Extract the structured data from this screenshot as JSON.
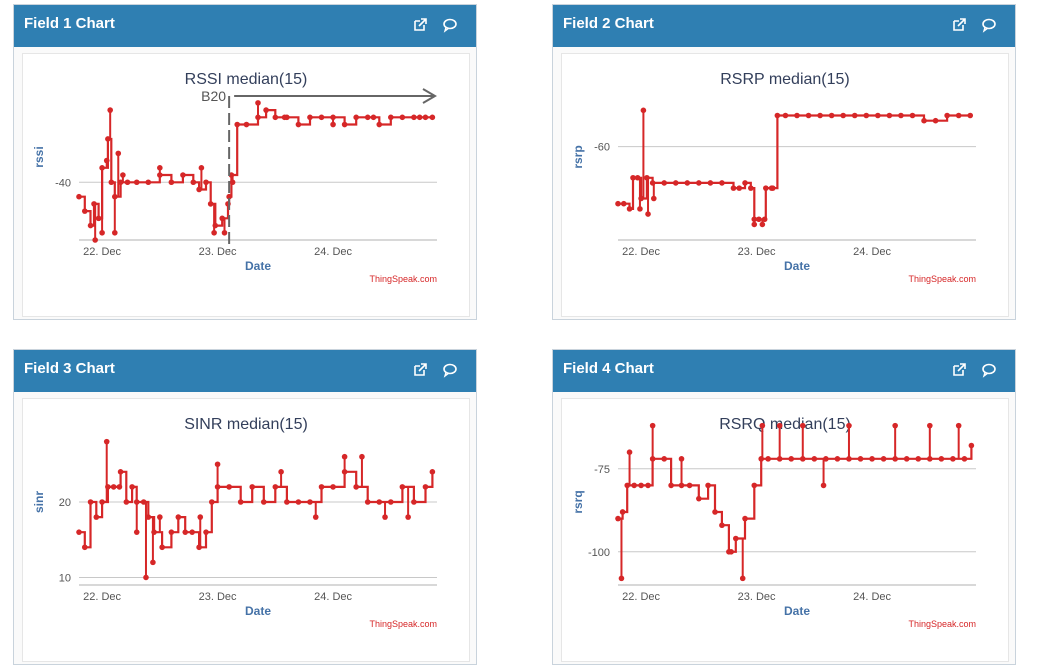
{
  "panels": [
    {
      "header": "Field 1 Chart",
      "open_icon": "external-link-icon",
      "comment_icon": "comment-icon",
      "chart_data": {
        "type": "line",
        "title": "RSSI median(15)",
        "xlabel": "Date",
        "ylabel": "rssi",
        "xlim": [
          0,
          3.1
        ],
        "ylim": [
          -48,
          -25
        ],
        "xticks": [
          {
            "value": 0.2,
            "label": "22. Dec"
          },
          {
            "value": 1.2,
            "label": "23. Dec"
          },
          {
            "value": 2.2,
            "label": "24. Dec"
          }
        ],
        "yticks": [
          {
            "value": -40,
            "label": "-40"
          }
        ],
        "color": "#d62728",
        "credit": "ThingSpeak.com",
        "annotation": {
          "text": "B20",
          "x": 1.3,
          "y_top": -25,
          "y_bottom": -48
        },
        "segments": [
          [
            0,
            -42
          ],
          [
            0.05,
            -44
          ],
          [
            0.1,
            -46
          ],
          [
            0.13,
            -43
          ],
          [
            0.17,
            -45
          ],
          [
            0.2,
            -38
          ],
          [
            0.25,
            -34
          ],
          [
            0.28,
            -40
          ],
          [
            0.31,
            -42
          ],
          [
            0.36,
            -40
          ],
          [
            0.42,
            -40
          ],
          [
            0.5,
            -40
          ],
          [
            0.6,
            -40
          ],
          [
            0.7,
            -39
          ],
          [
            0.8,
            -40
          ],
          [
            0.9,
            -39
          ],
          [
            0.99,
            -40
          ],
          [
            1.04,
            -41
          ],
          [
            1.1,
            -40
          ],
          [
            1.14,
            -43
          ],
          [
            1.18,
            -46
          ],
          [
            1.24,
            -45
          ],
          [
            1.29,
            -43
          ],
          [
            1.3,
            -42
          ],
          [
            1.32,
            -39
          ],
          [
            1.37,
            -32
          ],
          [
            1.45,
            -32
          ],
          [
            1.55,
            -31
          ],
          [
            1.62,
            -30
          ],
          [
            1.7,
            -31
          ],
          [
            1.8,
            -31
          ],
          [
            1.9,
            -32
          ],
          [
            2.0,
            -31
          ],
          [
            2.1,
            -31
          ],
          [
            2.2,
            -31
          ],
          [
            2.3,
            -32
          ],
          [
            2.4,
            -31
          ],
          [
            2.5,
            -31
          ],
          [
            2.6,
            -32
          ],
          [
            2.7,
            -31
          ],
          [
            2.8,
            -31
          ],
          [
            2.9,
            -31
          ],
          [
            3.0,
            -31
          ],
          [
            3.06,
            -31
          ]
        ],
        "spikes": [
          [
            0.14,
            -48
          ],
          [
            0.2,
            -47
          ],
          [
            0.24,
            -37
          ],
          [
            0.27,
            -30
          ],
          [
            0.31,
            -47
          ],
          [
            0.34,
            -36
          ],
          [
            0.38,
            -39
          ],
          [
            0.7,
            -38
          ],
          [
            1.06,
            -38
          ],
          [
            1.17,
            -47
          ],
          [
            1.26,
            -47
          ],
          [
            1.33,
            -40
          ],
          [
            1.55,
            -29
          ],
          [
            1.78,
            -31
          ],
          [
            2.2,
            -32
          ],
          [
            2.55,
            -31
          ],
          [
            2.95,
            -31
          ]
        ]
      }
    },
    {
      "header": "Field 2 Chart",
      "open_icon": "external-link-icon",
      "comment_icon": "comment-icon",
      "chart_data": {
        "type": "line",
        "title": "RSRP median(15)",
        "xlabel": "Date",
        "ylabel": "rsrp",
        "xlim": [
          0,
          3.1
        ],
        "ylim": [
          -78,
          -46
        ],
        "xticks": [
          {
            "value": 0.2,
            "label": "22. Dec"
          },
          {
            "value": 1.2,
            "label": "23. Dec"
          },
          {
            "value": 2.2,
            "label": "24. Dec"
          }
        ],
        "yticks": [
          {
            "value": -60,
            "label": "-60"
          }
        ],
        "color": "#d62728",
        "credit": "ThingSpeak.com",
        "segments": [
          [
            0,
            -71
          ],
          [
            0.05,
            -71
          ],
          [
            0.1,
            -72
          ],
          [
            0.13,
            -66
          ],
          [
            0.17,
            -66
          ],
          [
            0.2,
            -70
          ],
          [
            0.25,
            -66
          ],
          [
            0.3,
            -67
          ],
          [
            0.4,
            -67
          ],
          [
            0.5,
            -67
          ],
          [
            0.6,
            -67
          ],
          [
            0.7,
            -67
          ],
          [
            0.8,
            -67
          ],
          [
            0.9,
            -67
          ],
          [
            1.0,
            -68
          ],
          [
            1.05,
            -68
          ],
          [
            1.1,
            -67
          ],
          [
            1.15,
            -68
          ],
          [
            1.18,
            -74
          ],
          [
            1.22,
            -74
          ],
          [
            1.27,
            -74
          ],
          [
            1.28,
            -68
          ],
          [
            1.33,
            -68
          ],
          [
            1.38,
            -54
          ],
          [
            1.45,
            -54
          ],
          [
            1.55,
            -54
          ],
          [
            1.65,
            -54
          ],
          [
            1.75,
            -54
          ],
          [
            1.85,
            -54
          ],
          [
            1.95,
            -54
          ],
          [
            2.05,
            -54
          ],
          [
            2.15,
            -54
          ],
          [
            2.25,
            -54
          ],
          [
            2.35,
            -54
          ],
          [
            2.45,
            -54
          ],
          [
            2.55,
            -54
          ],
          [
            2.65,
            -55
          ],
          [
            2.75,
            -55
          ],
          [
            2.85,
            -54
          ],
          [
            2.95,
            -54
          ],
          [
            3.05,
            -54
          ]
        ],
        "spikes": [
          [
            0.19,
            -72
          ],
          [
            0.22,
            -53
          ],
          [
            0.26,
            -73
          ],
          [
            0.31,
            -70
          ],
          [
            1.18,
            -75
          ],
          [
            1.25,
            -75
          ],
          [
            1.34,
            -68
          ]
        ]
      }
    },
    {
      "header": "Field 3 Chart",
      "open_icon": "external-link-icon",
      "comment_icon": "comment-icon",
      "chart_data": {
        "type": "line",
        "title": "SINR median(15)",
        "xlabel": "Date",
        "ylabel": "sinr",
        "xlim": [
          0,
          3.1
        ],
        "ylim": [
          9,
          31
        ],
        "xticks": [
          {
            "value": 0.2,
            "label": "22. Dec"
          },
          {
            "value": 1.2,
            "label": "23. Dec"
          },
          {
            "value": 2.2,
            "label": "24. Dec"
          }
        ],
        "yticks": [
          {
            "value": 10,
            "label": "10"
          },
          {
            "value": 20,
            "label": "20"
          }
        ],
        "color": "#d62728",
        "credit": "ThingSpeak.com",
        "segments": [
          [
            0,
            16
          ],
          [
            0.05,
            14
          ],
          [
            0.1,
            20
          ],
          [
            0.15,
            18
          ],
          [
            0.2,
            20
          ],
          [
            0.25,
            22
          ],
          [
            0.3,
            22
          ],
          [
            0.36,
            24
          ],
          [
            0.41,
            20
          ],
          [
            0.46,
            22
          ],
          [
            0.5,
            20
          ],
          [
            0.56,
            20
          ],
          [
            0.6,
            18
          ],
          [
            0.65,
            16
          ],
          [
            0.72,
            14
          ],
          [
            0.8,
            16
          ],
          [
            0.86,
            18
          ],
          [
            0.92,
            16
          ],
          [
            0.98,
            16
          ],
          [
            1.04,
            14
          ],
          [
            1.1,
            16
          ],
          [
            1.15,
            20
          ],
          [
            1.2,
            22
          ],
          [
            1.3,
            22
          ],
          [
            1.4,
            20
          ],
          [
            1.5,
            22
          ],
          [
            1.6,
            20
          ],
          [
            1.7,
            22
          ],
          [
            1.8,
            20
          ],
          [
            1.9,
            20
          ],
          [
            2.0,
            20
          ],
          [
            2.1,
            22
          ],
          [
            2.2,
            22
          ],
          [
            2.3,
            24
          ],
          [
            2.4,
            22
          ],
          [
            2.5,
            20
          ],
          [
            2.6,
            20
          ],
          [
            2.7,
            20
          ],
          [
            2.8,
            22
          ],
          [
            2.9,
            20
          ],
          [
            3.0,
            22
          ],
          [
            3.06,
            24
          ]
        ],
        "spikes": [
          [
            0.24,
            28
          ],
          [
            0.35,
            22
          ],
          [
            0.5,
            16
          ],
          [
            0.58,
            10
          ],
          [
            0.64,
            12
          ],
          [
            0.7,
            18
          ],
          [
            1.05,
            18
          ],
          [
            1.2,
            25
          ],
          [
            1.75,
            24
          ],
          [
            2.05,
            18
          ],
          [
            2.3,
            26
          ],
          [
            2.45,
            26
          ],
          [
            2.65,
            18
          ],
          [
            2.85,
            18
          ]
        ]
      }
    },
    {
      "header": "Field 4 Chart",
      "open_icon": "external-link-icon",
      "comment_icon": "comment-icon",
      "chart_data": {
        "type": "line",
        "title": "RSRQ median(15)",
        "xlabel": "Date",
        "ylabel": "rsrq",
        "xlim": [
          0,
          3.1
        ],
        "ylim": [
          -110,
          -60
        ],
        "xticks": [
          {
            "value": 0.2,
            "label": "22. Dec"
          },
          {
            "value": 1.2,
            "label": "23. Dec"
          },
          {
            "value": 2.2,
            "label": "24. Dec"
          }
        ],
        "yticks": [
          {
            "value": -75,
            "label": "-75"
          },
          {
            "value": -100,
            "label": "-100"
          }
        ],
        "color": "#d62728",
        "credit": "ThingSpeak.com",
        "segments": [
          [
            0,
            -90
          ],
          [
            0.04,
            -88
          ],
          [
            0.08,
            -80
          ],
          [
            0.14,
            -80
          ],
          [
            0.2,
            -80
          ],
          [
            0.26,
            -80
          ],
          [
            0.3,
            -72
          ],
          [
            0.4,
            -72
          ],
          [
            0.46,
            -80
          ],
          [
            0.55,
            -80
          ],
          [
            0.62,
            -80
          ],
          [
            0.7,
            -84
          ],
          [
            0.78,
            -80
          ],
          [
            0.84,
            -88
          ],
          [
            0.9,
            -92
          ],
          [
            0.96,
            -100
          ],
          [
            1.02,
            -96
          ],
          [
            1.1,
            -90
          ],
          [
            1.18,
            -80
          ],
          [
            1.24,
            -72
          ],
          [
            1.3,
            -72
          ],
          [
            1.4,
            -72
          ],
          [
            1.5,
            -72
          ],
          [
            1.6,
            -72
          ],
          [
            1.7,
            -72
          ],
          [
            1.8,
            -72
          ],
          [
            1.9,
            -72
          ],
          [
            2.0,
            -72
          ],
          [
            2.1,
            -72
          ],
          [
            2.2,
            -72
          ],
          [
            2.3,
            -72
          ],
          [
            2.4,
            -72
          ],
          [
            2.5,
            -72
          ],
          [
            2.6,
            -72
          ],
          [
            2.7,
            -72
          ],
          [
            2.8,
            -72
          ],
          [
            2.9,
            -72
          ],
          [
            3.0,
            -72
          ],
          [
            3.06,
            -68
          ]
        ],
        "spikes": [
          [
            0.03,
            -108
          ],
          [
            0.1,
            -70
          ],
          [
            0.3,
            -62
          ],
          [
            0.55,
            -72
          ],
          [
            0.98,
            -100
          ],
          [
            1.08,
            -108
          ],
          [
            1.25,
            -62
          ],
          [
            1.4,
            -62
          ],
          [
            1.6,
            -62
          ],
          [
            1.78,
            -80
          ],
          [
            2.0,
            -62
          ],
          [
            2.4,
            -62
          ],
          [
            2.7,
            -62
          ],
          [
            2.95,
            -62
          ]
        ]
      }
    }
  ]
}
